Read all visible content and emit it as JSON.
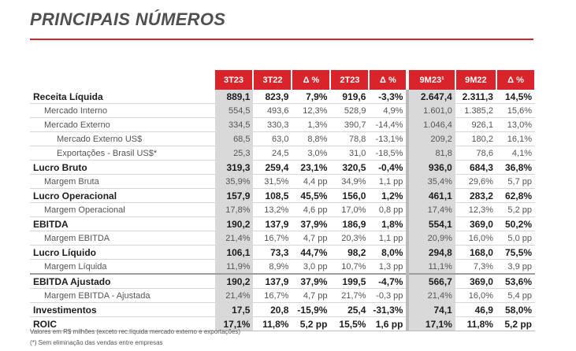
{
  "title": "PRINCIPAIS NÚMEROS",
  "headers": [
    "3T23",
    "3T22",
    "Δ %",
    "2T23",
    "Δ %",
    "9M23¹",
    "9M22",
    "Δ %"
  ],
  "rows": [
    {
      "label": "Receita Líquida",
      "values": [
        "889,1",
        "823,9",
        "7,9%",
        "919,6",
        "-3,3%",
        "2.647,4",
        "2.311,3",
        "14,5%"
      ]
    },
    {
      "label": "Mercado Interno",
      "values": [
        "554,5",
        "493,6",
        "12,3%",
        "528,9",
        "4,9%",
        "1.601,0",
        "1.385,2",
        "15,6%"
      ]
    },
    {
      "label": "Mercado Externo",
      "values": [
        "334,5",
        "330,3",
        "1,3%",
        "390,7",
        "-14,4%",
        "1.046,4",
        "926,1",
        "13,0%"
      ]
    },
    {
      "label": "Mercado Externo US$",
      "values": [
        "68,5",
        "63,0",
        "8,8%",
        "78,8",
        "-13,1%",
        "209,2",
        "180,2",
        "16,1%"
      ]
    },
    {
      "label": "Exportações - Brasil US$*",
      "values": [
        "25,3",
        "24,5",
        "3,0%",
        "31,0",
        "-18,5%",
        "81,8",
        "78,6",
        "4,1%"
      ]
    },
    {
      "label": "Lucro Bruto",
      "values": [
        "319,3",
        "259,4",
        "23,1%",
        "320,5",
        "-0,4%",
        "936,0",
        "684,3",
        "36,8%"
      ]
    },
    {
      "label": "Margem Bruta",
      "values": [
        "35,9%",
        "31,5%",
        "4,4 pp",
        "34,9%",
        "1,1 pp",
        "35,4%",
        "29,6%",
        "5,7 pp"
      ]
    },
    {
      "label": "Lucro Operacional",
      "values": [
        "157,9",
        "108,5",
        "45,5%",
        "156,0",
        "1,2%",
        "461,1",
        "283,2",
        "62,8%"
      ]
    },
    {
      "label": "Margem Operacional",
      "values": [
        "17,8%",
        "13,2%",
        "4,6 pp",
        "17,0%",
        "0,8 pp",
        "17,4%",
        "12,3%",
        "5,2 pp"
      ]
    },
    {
      "label": "EBITDA",
      "values": [
        "190,2",
        "137,9",
        "37,9%",
        "186,9",
        "1,8%",
        "554,1",
        "369,0",
        "50,2%"
      ]
    },
    {
      "label": "Margem EBITDA",
      "values": [
        "21,4%",
        "16,7%",
        "4,7 pp",
        "20,3%",
        "1,1 pp",
        "20,9%",
        "16,0%",
        "5,0 pp"
      ]
    },
    {
      "label": "Lucro Líquido",
      "values": [
        "106,1",
        "73,3",
        "44,7%",
        "98,2",
        "8,0%",
        "294,8",
        "168,0",
        "75,5%"
      ]
    },
    {
      "label": "Margem Líquida",
      "values": [
        "11,9%",
        "8,9%",
        "3,0 pp",
        "10,7%",
        "1,3 pp",
        "11,1%",
        "7,3%",
        "3,9 pp"
      ]
    },
    {
      "label": "EBITDA Ajustado",
      "values": [
        "190,2",
        "137,9",
        "37,9%",
        "199,5",
        "-4,7%",
        "566,7",
        "369,0",
        "53,6%"
      ]
    },
    {
      "label": "Margem EBITDA - Ajustada",
      "values": [
        "21,4%",
        "16,7%",
        "4,7 pp",
        "21,7%",
        "-0,3 pp",
        "21,4%",
        "16,0%",
        "5,4 pp"
      ]
    },
    {
      "label": "Investimentos",
      "values": [
        "17,5",
        "20,8",
        "-15,9%",
        "25,4",
        "-31,3%",
        "74,1",
        "46,9",
        "58,0%"
      ]
    },
    {
      "label": "ROIC",
      "values": [
        "17,1%",
        "11,8%",
        "5,2 pp",
        "15,5%",
        "1,6 pp",
        "17,1%",
        "11,8%",
        "5,2 pp"
      ]
    }
  ],
  "footnotes": [
    "Valores em R$ milhões (exceto rec.líquida mercado externo e exportações)",
    "(*) Sem eliminação das vendas entre empresas"
  ]
}
